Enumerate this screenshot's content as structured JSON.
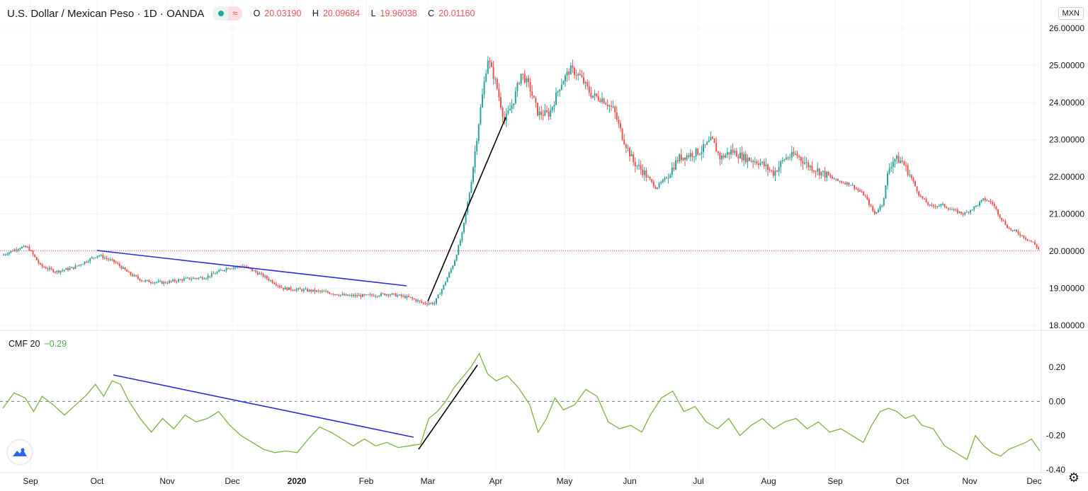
{
  "legend": {
    "symbol": "U.S. Dollar / Mexican Peso · 1D · OANDA",
    "open_label": "O",
    "open": "20.03190",
    "high_label": "H",
    "high": "20.09684",
    "low_label": "L",
    "low": "19.96038",
    "close_label": "C",
    "close": "20.01160",
    "wave_glyph": "≈"
  },
  "currency_badge": "MXN",
  "cmf_legend": {
    "name": "CMF 20",
    "value": "−0.29"
  },
  "colors": {
    "up": "#26a69a",
    "down": "#ef5350",
    "cmf": "#7cb342",
    "trendline_blue": "#2a2ad8",
    "trendline_black": "#000000",
    "last_price": "#ef5350"
  },
  "icons": {
    "logo": "tradingview-logo-icon",
    "settings": "gear-icon"
  },
  "chart_data": [
    {
      "type": "candlestick",
      "title": "U.S. Dollar / Mexican Peso · 1D · OANDA",
      "ylim": [
        18.0,
        26.0
      ],
      "y_ticks": [
        "26.00000",
        "25.00000",
        "24.00000",
        "23.00000",
        "22.00000",
        "21.00000",
        "20.00000",
        "19.00000",
        "18.00000"
      ],
      "x_ticks": [
        "Sep",
        "Oct",
        "Nov",
        "Dec",
        "2020",
        "Feb",
        "Mar",
        "Apr",
        "May",
        "Jun",
        "Jul",
        "Aug",
        "Sep",
        "Oct",
        "Nov",
        "Dec"
      ],
      "last_price": 20.0116,
      "path": [
        [
          0,
          19.9
        ],
        [
          12,
          20.1
        ],
        [
          18,
          20.1
        ],
        [
          27,
          19.6
        ],
        [
          38,
          19.45
        ],
        [
          50,
          19.55
        ],
        [
          58,
          19.7
        ],
        [
          68,
          19.9
        ],
        [
          80,
          19.7
        ],
        [
          90,
          19.4
        ],
        [
          100,
          19.2
        ],
        [
          115,
          19.15
        ],
        [
          130,
          19.25
        ],
        [
          145,
          19.3
        ],
        [
          160,
          19.55
        ],
        [
          172,
          19.6
        ],
        [
          185,
          19.35
        ],
        [
          200,
          19.0
        ],
        [
          215,
          18.95
        ],
        [
          230,
          18.9
        ],
        [
          245,
          18.8
        ],
        [
          260,
          18.8
        ],
        [
          275,
          18.85
        ],
        [
          290,
          18.75
        ],
        [
          300,
          18.6
        ],
        [
          308,
          18.6
        ],
        [
          315,
          19.1
        ],
        [
          322,
          19.7
        ],
        [
          328,
          20.5
        ],
        [
          334,
          21.8
        ],
        [
          340,
          23.6
        ],
        [
          346,
          25.2
        ],
        [
          352,
          24.5
        ],
        [
          358,
          23.5
        ],
        [
          364,
          24.0
        ],
        [
          370,
          24.8
        ],
        [
          376,
          24.4
        ],
        [
          382,
          23.7
        ],
        [
          390,
          23.7
        ],
        [
          398,
          24.5
        ],
        [
          405,
          24.9
        ],
        [
          412,
          24.7
        ],
        [
          420,
          24.2
        ],
        [
          428,
          24.1
        ],
        [
          436,
          23.8
        ],
        [
          442,
          23.1
        ],
        [
          450,
          22.4
        ],
        [
          458,
          22.1
        ],
        [
          466,
          21.7
        ],
        [
          474,
          22.0
        ],
        [
          482,
          22.5
        ],
        [
          490,
          22.6
        ],
        [
          498,
          22.7
        ],
        [
          506,
          23.0
        ],
        [
          512,
          22.5
        ],
        [
          520,
          22.7
        ],
        [
          530,
          22.5
        ],
        [
          540,
          22.4
        ],
        [
          550,
          22.1
        ],
        [
          558,
          22.5
        ],
        [
          566,
          22.6
        ],
        [
          575,
          22.3
        ],
        [
          585,
          22.1
        ],
        [
          595,
          21.9
        ],
        [
          605,
          21.8
        ],
        [
          615,
          21.5
        ],
        [
          622,
          21.0
        ],
        [
          628,
          21.3
        ],
        [
          632,
          22.2
        ],
        [
          636,
          22.5
        ],
        [
          642,
          22.4
        ],
        [
          648,
          22.0
        ],
        [
          654,
          21.5
        ],
        [
          662,
          21.2
        ],
        [
          670,
          21.25
        ],
        [
          678,
          21.1
        ],
        [
          686,
          21.0
        ],
        [
          694,
          21.2
        ],
        [
          700,
          21.4
        ],
        [
          706,
          21.3
        ],
        [
          712,
          20.9
        ],
        [
          718,
          20.6
        ],
        [
          724,
          20.5
        ],
        [
          730,
          20.35
        ],
        [
          736,
          20.2
        ],
        [
          740,
          20.01
        ]
      ]
    },
    {
      "type": "line",
      "title": "CMF 20",
      "ylim": [
        -0.4,
        0.32
      ],
      "y_ticks": [
        "0.20",
        "0.00",
        "-0.20",
        "-0.40"
      ],
      "path": [
        [
          0,
          -0.04
        ],
        [
          8,
          0.05
        ],
        [
          16,
          0.02
        ],
        [
          22,
          -0.06
        ],
        [
          28,
          0.03
        ],
        [
          36,
          -0.02
        ],
        [
          44,
          -0.08
        ],
        [
          52,
          -0.02
        ],
        [
          60,
          0.04
        ],
        [
          66,
          0.1
        ],
        [
          72,
          0.03
        ],
        [
          78,
          0.12
        ],
        [
          84,
          0.1
        ],
        [
          90,
          0.0
        ],
        [
          98,
          -0.1
        ],
        [
          106,
          -0.18
        ],
        [
          114,
          -0.1
        ],
        [
          122,
          -0.16
        ],
        [
          130,
          -0.08
        ],
        [
          138,
          -0.12
        ],
        [
          146,
          -0.1
        ],
        [
          154,
          -0.06
        ],
        [
          162,
          -0.14
        ],
        [
          170,
          -0.2
        ],
        [
          178,
          -0.24
        ],
        [
          186,
          -0.28
        ],
        [
          194,
          -0.3
        ],
        [
          202,
          -0.29
        ],
        [
          210,
          -0.3
        ],
        [
          218,
          -0.22
        ],
        [
          226,
          -0.15
        ],
        [
          234,
          -0.18
        ],
        [
          242,
          -0.22
        ],
        [
          250,
          -0.26
        ],
        [
          258,
          -0.22
        ],
        [
          266,
          -0.26
        ],
        [
          274,
          -0.24
        ],
        [
          282,
          -0.27
        ],
        [
          290,
          -0.26
        ],
        [
          298,
          -0.25
        ],
        [
          304,
          -0.1
        ],
        [
          310,
          -0.06
        ],
        [
          316,
          0.0
        ],
        [
          322,
          0.08
        ],
        [
          328,
          0.14
        ],
        [
          334,
          0.2
        ],
        [
          340,
          0.28
        ],
        [
          346,
          0.16
        ],
        [
          352,
          0.12
        ],
        [
          360,
          0.15
        ],
        [
          368,
          0.08
        ],
        [
          376,
          -0.02
        ],
        [
          382,
          -0.18
        ],
        [
          388,
          -0.1
        ],
        [
          394,
          0.02
        ],
        [
          400,
          -0.05
        ],
        [
          408,
          -0.02
        ],
        [
          416,
          0.07
        ],
        [
          424,
          0.03
        ],
        [
          432,
          -0.12
        ],
        [
          440,
          -0.16
        ],
        [
          448,
          -0.14
        ],
        [
          456,
          -0.18
        ],
        [
          462,
          -0.08
        ],
        [
          470,
          0.02
        ],
        [
          478,
          0.06
        ],
        [
          486,
          -0.06
        ],
        [
          494,
          -0.03
        ],
        [
          502,
          -0.12
        ],
        [
          510,
          -0.16
        ],
        [
          518,
          -0.1
        ],
        [
          526,
          -0.2
        ],
        [
          534,
          -0.14
        ],
        [
          542,
          -0.1
        ],
        [
          550,
          -0.16
        ],
        [
          558,
          -0.12
        ],
        [
          566,
          -0.1
        ],
        [
          574,
          -0.16
        ],
        [
          582,
          -0.12
        ],
        [
          590,
          -0.18
        ],
        [
          598,
          -0.16
        ],
        [
          606,
          -0.2
        ],
        [
          614,
          -0.24
        ],
        [
          620,
          -0.14
        ],
        [
          626,
          -0.06
        ],
        [
          632,
          -0.04
        ],
        [
          638,
          -0.06
        ],
        [
          644,
          -0.1
        ],
        [
          650,
          -0.08
        ],
        [
          656,
          -0.14
        ],
        [
          664,
          -0.16
        ],
        [
          672,
          -0.26
        ],
        [
          680,
          -0.3
        ],
        [
          688,
          -0.34
        ],
        [
          694,
          -0.2
        ],
        [
          700,
          -0.26
        ],
        [
          706,
          -0.3
        ],
        [
          712,
          -0.32
        ],
        [
          718,
          -0.28
        ],
        [
          724,
          -0.26
        ],
        [
          730,
          -0.24
        ],
        [
          734,
          -0.22
        ],
        [
          740,
          -0.29
        ]
      ]
    }
  ]
}
